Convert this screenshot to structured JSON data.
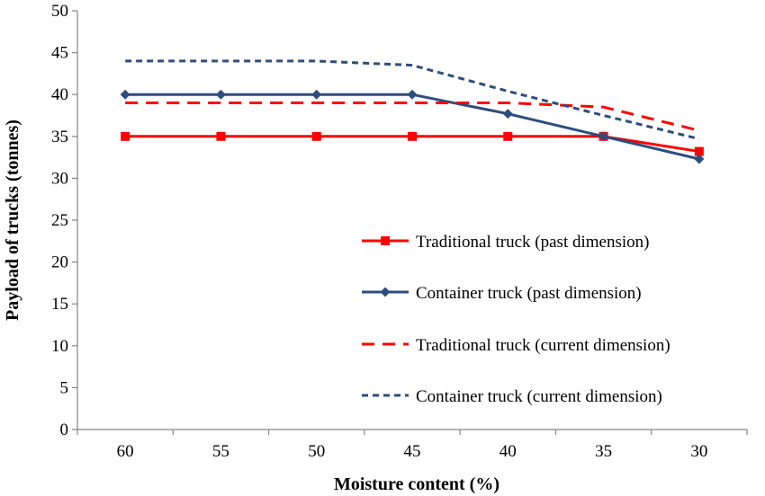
{
  "chart_data": {
    "type": "line",
    "xlabel": "Moisture content (%)",
    "ylabel": "Payload of trucks (tonnes)",
    "categories": [
      "60",
      "55",
      "50",
      "45",
      "40",
      "35",
      "30"
    ],
    "ylim": [
      0,
      50
    ],
    "yticks": [
      0,
      5,
      10,
      15,
      20,
      25,
      30,
      35,
      40,
      45,
      50
    ],
    "grid": false,
    "legend_position": "right",
    "series": [
      {
        "name": "Traditional truck (past dimension)",
        "values": [
          35,
          35,
          35,
          35,
          35,
          35,
          33.2
        ],
        "color": "#ff0000",
        "line_style": "solid",
        "marker": "square"
      },
      {
        "name": "Container truck (past dimension)",
        "values": [
          40,
          40,
          40,
          40,
          37.7,
          35,
          32.3
        ],
        "color": "#2e4d7f",
        "line_style": "solid",
        "marker": "diamond"
      },
      {
        "name": "Traditional truck (current dimension)",
        "values": [
          39,
          39,
          39,
          39,
          39,
          38.5,
          35.7
        ],
        "color": "#ff0000",
        "line_style": "dashed",
        "marker": "none"
      },
      {
        "name": "Container truck (current dimension)",
        "values": [
          44,
          44,
          44,
          43.5,
          40.4,
          37.5,
          34.7
        ],
        "color": "#2e4d7f",
        "line_style": "dotted",
        "marker": "none"
      }
    ]
  }
}
